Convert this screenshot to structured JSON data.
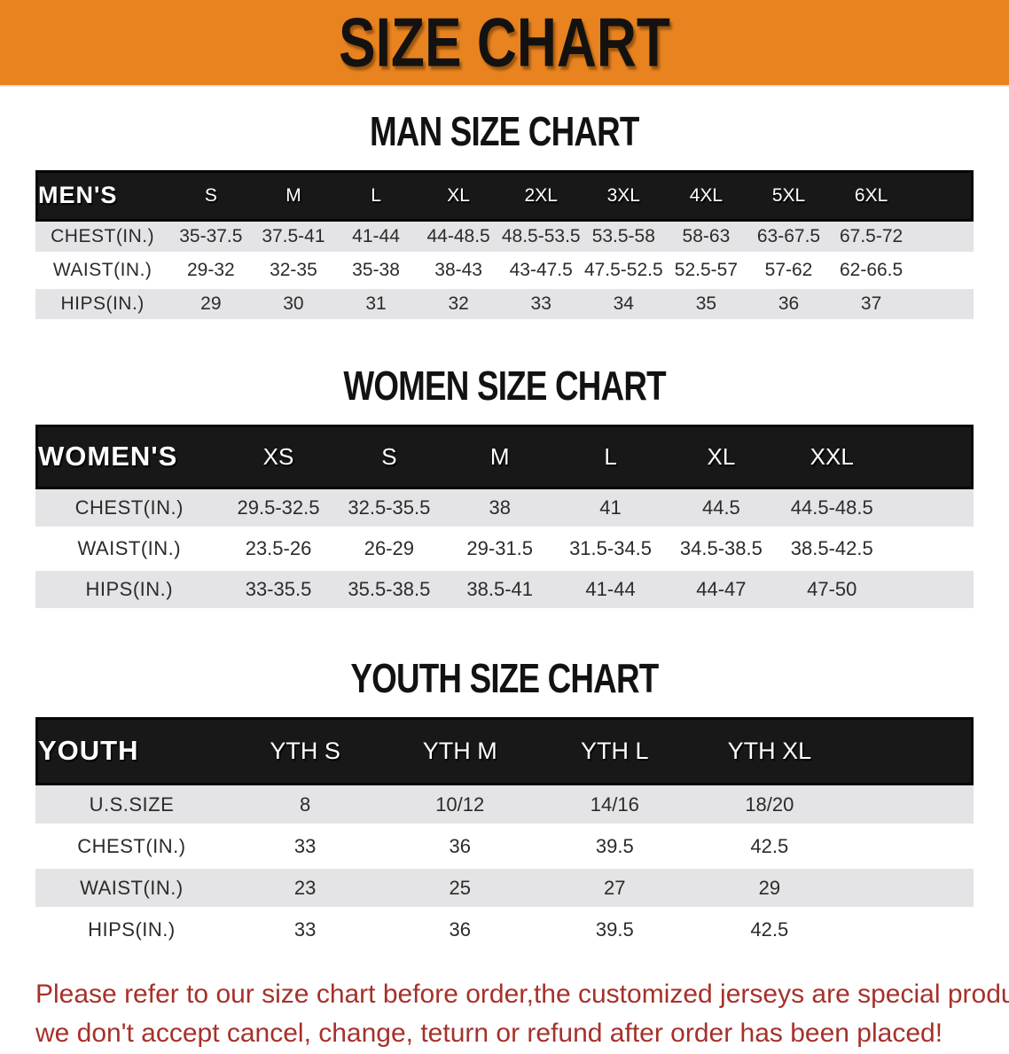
{
  "banner": {
    "title": "SIZE CHART"
  },
  "colors": {
    "banner_bg": "#E8831F",
    "table_header_bg": "#181818",
    "row_alt_bg": "#E4E4E6",
    "disclaimer_text": "#A6312B"
  },
  "sections": [
    {
      "heading": "MAN SIZE CHART",
      "table": {
        "corner": "MEN'S",
        "columns": [
          "S",
          "M",
          "L",
          "XL",
          "2XL",
          "3XL",
          "4XL",
          "5XL",
          "6XL"
        ],
        "rows": [
          {
            "label": "CHEST(IN.)",
            "values": [
              "35-37.5",
              "37.5-41",
              "41-44",
              "44-48.5",
              "48.5-53.5",
              "53.5-58",
              "58-63",
              "63-67.5",
              "67.5-72"
            ]
          },
          {
            "label": "WAIST(IN.)",
            "values": [
              "29-32",
              "32-35",
              "35-38",
              "38-43",
              "43-47.5",
              "47.5-52.5",
              "52.5-57",
              "57-62",
              "62-66.5"
            ]
          },
          {
            "label": "HIPS(IN.)",
            "values": [
              "29",
              "30",
              "31",
              "32",
              "33",
              "34",
              "35",
              "36",
              "37"
            ]
          }
        ]
      }
    },
    {
      "heading": "WOMEN SIZE CHART",
      "table": {
        "corner": "WOMEN'S",
        "columns": [
          "XS",
          "S",
          "M",
          "L",
          "XL",
          "XXL"
        ],
        "rows": [
          {
            "label": "CHEST(IN.)",
            "values": [
              "29.5-32.5",
              "32.5-35.5",
              "38",
              "41",
              "44.5",
              "44.5-48.5"
            ]
          },
          {
            "label": "WAIST(IN.)",
            "values": [
              "23.5-26",
              "26-29",
              "29-31.5",
              "31.5-34.5",
              "34.5-38.5",
              "38.5-42.5"
            ]
          },
          {
            "label": "HIPS(IN.)",
            "values": [
              "33-35.5",
              "35.5-38.5",
              "38.5-41",
              "41-44",
              "44-47",
              "47-50"
            ]
          }
        ]
      }
    },
    {
      "heading": "YOUTH SIZE CHART",
      "table": {
        "corner": "YOUTH",
        "columns": [
          "YTH S",
          "YTH M",
          "YTH L",
          "YTH XL"
        ],
        "rows": [
          {
            "label": "U.S.SIZE",
            "values": [
              "8",
              "10/12",
              "14/16",
              "18/20"
            ]
          },
          {
            "label": "CHEST(IN.)",
            "values": [
              "33",
              "36",
              "39.5",
              "42.5"
            ]
          },
          {
            "label": "WAIST(IN.)",
            "values": [
              "23",
              "25",
              "27",
              "29"
            ]
          },
          {
            "label": "HIPS(IN.)",
            "values": [
              "33",
              "36",
              "39.5",
              "42.5"
            ]
          }
        ]
      }
    }
  ],
  "disclaimer": {
    "line1": "Please refer to our size chart before order,the customized jerseys are special products,",
    "line2": "we don't accept cancel, change, teturn or refund after order has been placed!"
  }
}
